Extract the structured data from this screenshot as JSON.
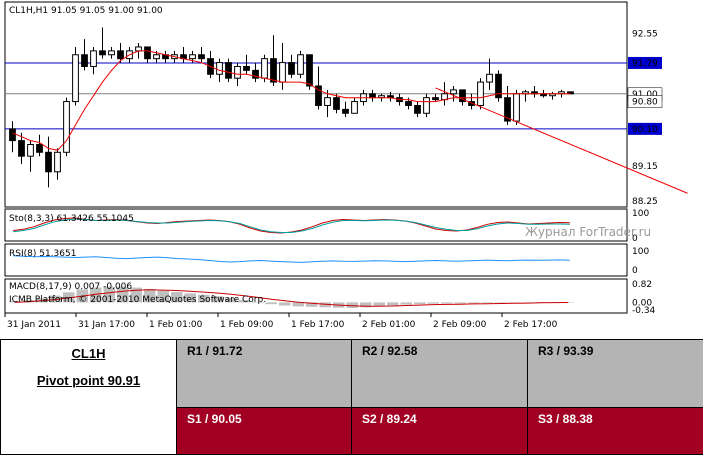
{
  "chart_data": [
    {
      "type": "candlestick",
      "title": "CL1H,H1  91.05 91.05 91.00 91.00",
      "ylim": [
        88.2,
        93.25
      ],
      "yticks": [
        "92.55",
        "89.15",
        "88.25"
      ],
      "xticks": [
        "31 Jan 2011",
        "31 Jan 17:00",
        "1 Feb 01:00",
        "1 Feb 09:00",
        "1 Feb 17:00",
        "2 Feb 01:00",
        "2 Feb 09:00",
        "2 Feb 17:00"
      ],
      "price_labels": [
        {
          "text": "91.79",
          "value": 91.79,
          "color": "#0000cc"
        },
        {
          "text": "91.00",
          "value": 91.0,
          "color": "#000000"
        },
        {
          "text": "90.80",
          "value": 90.8,
          "color": "#000000"
        },
        {
          "text": "90.10",
          "value": 90.1,
          "color": "#0000cc"
        }
      ],
      "levels": [
        91.79,
        91.0,
        90.1
      ],
      "ohlc": [
        [
          90.1,
          90.3,
          89.5,
          89.8
        ],
        [
          89.8,
          90.0,
          89.2,
          89.4
        ],
        [
          89.4,
          89.8,
          89.0,
          89.7
        ],
        [
          89.7,
          89.95,
          89.4,
          89.5
        ],
        [
          89.5,
          89.9,
          88.6,
          89.0
        ],
        [
          89.0,
          89.6,
          88.8,
          89.5
        ],
        [
          89.5,
          90.9,
          89.4,
          90.8
        ],
        [
          90.8,
          92.2,
          90.7,
          92.0
        ],
        [
          92.0,
          92.4,
          91.6,
          91.7
        ],
        [
          91.7,
          92.2,
          91.5,
          92.1
        ],
        [
          92.1,
          92.7,
          91.9,
          92.0
        ],
        [
          92.0,
          92.2,
          91.9,
          92.1
        ],
        [
          92.1,
          92.3,
          91.8,
          91.9
        ],
        [
          91.9,
          92.2,
          91.8,
          92.1
        ],
        [
          92.1,
          92.3,
          91.9,
          92.2
        ],
        [
          92.2,
          92.2,
          91.8,
          91.9
        ],
        [
          91.9,
          92.1,
          91.8,
          92.0
        ],
        [
          92.0,
          92.1,
          91.8,
          91.9
        ],
        [
          91.9,
          92.1,
          91.8,
          92.0
        ],
        [
          92.0,
          92.2,
          91.8,
          91.9
        ],
        [
          91.9,
          92.1,
          91.8,
          92.0
        ],
        [
          92.0,
          92.2,
          91.8,
          91.9
        ],
        [
          91.9,
          92.1,
          91.4,
          91.5
        ],
        [
          91.5,
          91.9,
          91.3,
          91.8
        ],
        [
          91.8,
          91.9,
          91.3,
          91.4
        ],
        [
          91.4,
          91.8,
          91.2,
          91.7
        ],
        [
          91.7,
          92.0,
          91.5,
          91.6
        ],
        [
          91.6,
          91.8,
          91.3,
          91.4
        ],
        [
          91.4,
          92.0,
          91.3,
          91.9
        ],
        [
          91.9,
          92.5,
          91.2,
          91.3
        ],
        [
          91.3,
          92.3,
          91.1,
          91.8
        ],
        [
          91.8,
          92.0,
          91.4,
          91.5
        ],
        [
          91.5,
          92.1,
          91.4,
          92.0
        ],
        [
          92.0,
          92.0,
          91.1,
          91.2
        ],
        [
          91.2,
          91.7,
          90.6,
          90.7
        ],
        [
          90.7,
          91.1,
          90.4,
          90.9
        ],
        [
          90.9,
          91.0,
          90.5,
          90.6
        ],
        [
          90.6,
          90.8,
          90.4,
          90.5
        ],
        [
          90.5,
          90.9,
          90.5,
          90.8
        ],
        [
          90.8,
          91.1,
          90.7,
          91.0
        ],
        [
          91.0,
          91.1,
          90.8,
          90.9
        ],
        [
          90.9,
          91.0,
          90.8,
          90.95
        ],
        [
          90.95,
          91.05,
          90.8,
          90.9
        ],
        [
          90.9,
          91.0,
          90.7,
          90.8
        ],
        [
          90.8,
          90.9,
          90.6,
          90.7
        ],
        [
          90.7,
          90.8,
          90.4,
          90.5
        ],
        [
          90.5,
          91.0,
          90.4,
          90.9
        ],
        [
          90.9,
          91.0,
          90.8,
          90.85
        ],
        [
          90.85,
          91.3,
          90.7,
          91.0
        ],
        [
          91.0,
          91.2,
          90.8,
          91.1
        ],
        [
          91.1,
          91.1,
          90.7,
          90.8
        ],
        [
          90.8,
          91.0,
          90.6,
          90.7
        ],
        [
          90.7,
          91.4,
          90.6,
          91.3
        ],
        [
          91.3,
          91.9,
          91.1,
          91.5
        ],
        [
          91.5,
          91.6,
          90.8,
          90.9
        ],
        [
          90.9,
          91.2,
          90.2,
          90.3
        ],
        [
          90.3,
          91.1,
          90.2,
          91.0
        ],
        [
          91.0,
          91.1,
          90.8,
          91.05
        ],
        [
          91.05,
          91.2,
          90.9,
          91.0
        ],
        [
          91.0,
          91.1,
          90.9,
          90.95
        ],
        [
          90.95,
          91.05,
          90.85,
          91.0
        ],
        [
          91.0,
          91.1,
          90.9,
          91.05
        ],
        [
          91.05,
          91.05,
          91.0,
          91.0
        ]
      ],
      "ma": [
        90.0,
        89.9,
        89.8,
        89.75,
        89.6,
        89.55,
        89.8,
        90.2,
        90.6,
        90.95,
        91.3,
        91.6,
        91.85,
        92.0,
        92.1,
        92.1,
        92.05,
        92.0,
        91.95,
        91.9,
        91.85,
        91.8,
        91.7,
        91.6,
        91.55,
        91.5,
        91.5,
        91.45,
        91.4,
        91.35,
        91.3,
        91.3,
        91.3,
        91.25,
        91.1,
        91.0,
        90.95,
        90.9,
        90.9,
        90.9,
        90.9,
        90.9,
        90.9,
        90.85,
        90.85,
        90.8,
        90.8,
        90.8,
        90.85,
        90.9,
        90.9,
        90.9,
        90.9,
        90.95,
        91.0,
        91.0,
        91.0,
        91.0,
        91.0,
        91.0,
        91.0,
        91.0,
        91.0
      ],
      "trendline": {
        "from": [
          47,
          91.15
        ],
        "to": [
          75,
          88.45
        ]
      }
    },
    {
      "type": "line",
      "title": "Sto(8,3,3) 61.3426 55.1045",
      "ylim": [
        0,
        100
      ],
      "yticks": [
        "100",
        "0"
      ],
      "series": [
        {
          "name": "61.3426",
          "color": "#cc0000",
          "values": [
            30,
            35,
            45,
            60,
            72,
            78,
            80,
            75,
            70,
            72,
            74,
            70,
            65,
            60,
            58,
            62,
            66,
            68,
            70,
            72,
            70,
            65,
            55,
            40,
            28,
            22,
            20,
            24,
            32,
            45,
            60,
            70,
            74,
            72,
            70,
            72,
            74,
            72,
            68,
            60,
            48,
            36,
            30,
            28,
            32,
            42,
            55,
            62,
            64,
            60,
            56,
            58,
            60,
            62,
            61
          ]
        },
        {
          "name": "55.1045",
          "color": "#00a0a0",
          "values": [
            25,
            30,
            38,
            52,
            65,
            72,
            76,
            74,
            70,
            70,
            72,
            70,
            66,
            62,
            60,
            60,
            63,
            66,
            68,
            70,
            69,
            65,
            58,
            45,
            32,
            25,
            22,
            22,
            28,
            38,
            52,
            63,
            70,
            70,
            69,
            70,
            72,
            71,
            68,
            62,
            52,
            42,
            35,
            30,
            30,
            37,
            48,
            56,
            60,
            58,
            55,
            55,
            56,
            56,
            55
          ]
        }
      ]
    },
    {
      "type": "line",
      "title": "RSI(8) 51.3651",
      "ylim": [
        0,
        100
      ],
      "yticks": [
        "100",
        "0"
      ],
      "series": [
        {
          "name": "51.3651",
          "color": "#1e90ff",
          "values": [
            75,
            72,
            70,
            71,
            70,
            68,
            66,
            68,
            70,
            66,
            62,
            60,
            63,
            66,
            68,
            64,
            60,
            58,
            55,
            50,
            45,
            42,
            44,
            48,
            50,
            47,
            44,
            42,
            40,
            43,
            46,
            48,
            46,
            45,
            47,
            49,
            48,
            46,
            44,
            46,
            48,
            50,
            48,
            46,
            48,
            50,
            52,
            50,
            49,
            51,
            52,
            51,
            52,
            53,
            51
          ]
        }
      ]
    },
    {
      "type": "bar",
      "title": "MACD(8,17,9) 0.007 -0.006",
      "ylim": [
        -0.34,
        0.82
      ],
      "yticks": [
        "0.82",
        "0.00",
        "-0.34"
      ],
      "series": [
        {
          "name": "0.007",
          "color": "#c0c0c0",
          "values": [
            0.05,
            0.1,
            0.18,
            0.3,
            0.45,
            0.58,
            0.66,
            0.7,
            0.7,
            0.66,
            0.6,
            0.52,
            0.46,
            0.4,
            0.34,
            0.28,
            0.2,
            0.1,
            0.0,
            -0.08,
            -0.14,
            -0.18,
            -0.2,
            -0.22,
            -0.24,
            -0.25,
            -0.22,
            -0.18,
            -0.14,
            -0.1,
            -0.08,
            -0.06,
            -0.05,
            -0.05,
            -0.04,
            -0.03,
            -0.02,
            -0.01,
            0.0,
            0.01,
            0.005,
            0.007
          ]
        },
        {
          "name": "-0.006",
          "color": "#cc0000",
          "values": [
            0.0,
            0.03,
            0.07,
            0.13,
            0.2,
            0.28,
            0.36,
            0.43,
            0.5,
            0.54,
            0.56,
            0.55,
            0.53,
            0.5,
            0.46,
            0.42,
            0.36,
            0.3,
            0.22,
            0.14,
            0.07,
            0.01,
            -0.04,
            -0.08,
            -0.12,
            -0.15,
            -0.17,
            -0.17,
            -0.16,
            -0.14,
            -0.12,
            -0.1,
            -0.09,
            -0.08,
            -0.07,
            -0.06,
            -0.05,
            -0.04,
            -0.03,
            -0.02,
            -0.01,
            -0.006
          ]
        }
      ]
    }
  ],
  "watermark": "Журнал ForTrader.ru",
  "copyright": "ICMB Platform, © 2001-2010 MetaQuotes Software Corp.",
  "pivot": {
    "symbol": "CL1H",
    "pivot_point": "Pivot point 90.91",
    "r1": "R1 / 91.72",
    "r2": "R2  / 92.58",
    "r3": "R3 / 93.39",
    "s1": "S1 / 90.05",
    "s2": "S2 / 89.24",
    "s3": "S3 / 88.38",
    "colors": {
      "resistance": "#b4b4b4",
      "support": "#a20022"
    }
  }
}
